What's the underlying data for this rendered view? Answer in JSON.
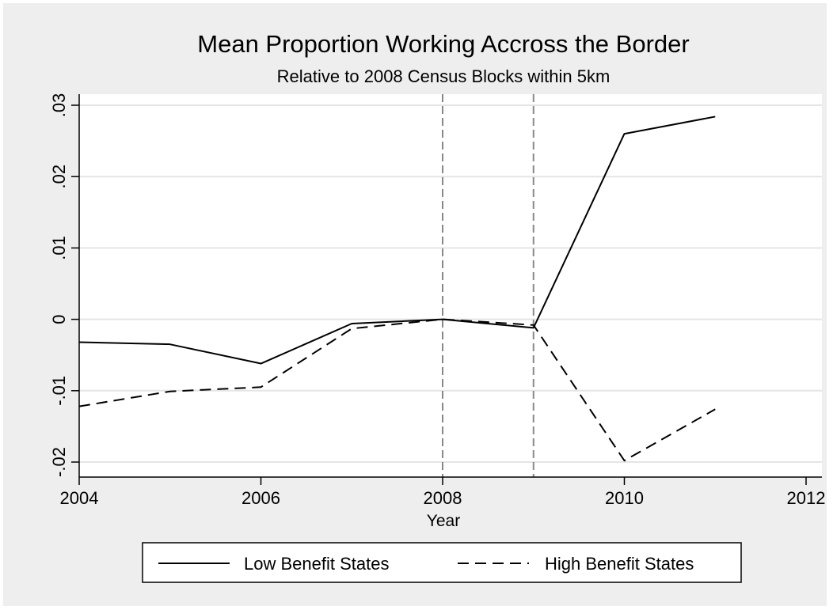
{
  "chart_data": {
    "type": "line",
    "title": "Mean Proportion Working Accross the Border",
    "subtitle": "Relative to 2008 Census Blocks within 5km",
    "xlabel": "Year",
    "ylabel": "",
    "xlim": [
      2004,
      2012
    ],
    "ylim": [
      -0.02,
      0.03
    ],
    "x_ticks": [
      2004,
      2006,
      2008,
      2010,
      2012
    ],
    "x_tick_labels": [
      "2004",
      "2006",
      "2008",
      "2010",
      "2012"
    ],
    "y_ticks": [
      -0.02,
      -0.01,
      0,
      0.01,
      0.02,
      0.03
    ],
    "y_tick_labels": [
      "-.02",
      "-.01",
      "0",
      ".01",
      ".02",
      ".03"
    ],
    "grid": true,
    "legend_position": "bottom",
    "reference_lines_x": [
      2008,
      2009
    ],
    "x": [
      2004,
      2005,
      2006,
      2007,
      2008,
      2009,
      2010,
      2011
    ],
    "series": [
      {
        "name": "Low Benefit States",
        "line_style": "solid",
        "color": "#000000",
        "values": [
          -0.0032,
          -0.0035,
          -0.0062,
          -0.0006,
          0.0,
          -0.0012,
          0.026,
          0.0284
        ]
      },
      {
        "name": "High Benefit States",
        "line_style": "dashed",
        "color": "#000000",
        "values": [
          -0.0122,
          -0.0101,
          -0.0095,
          -0.0013,
          0.0,
          -0.0008,
          -0.0198,
          -0.0126
        ]
      }
    ],
    "colors": {
      "background": "#eeeeee",
      "plot_background": "#ffffff",
      "grid": "#e5e5e5",
      "reference_line": "#888888"
    }
  }
}
